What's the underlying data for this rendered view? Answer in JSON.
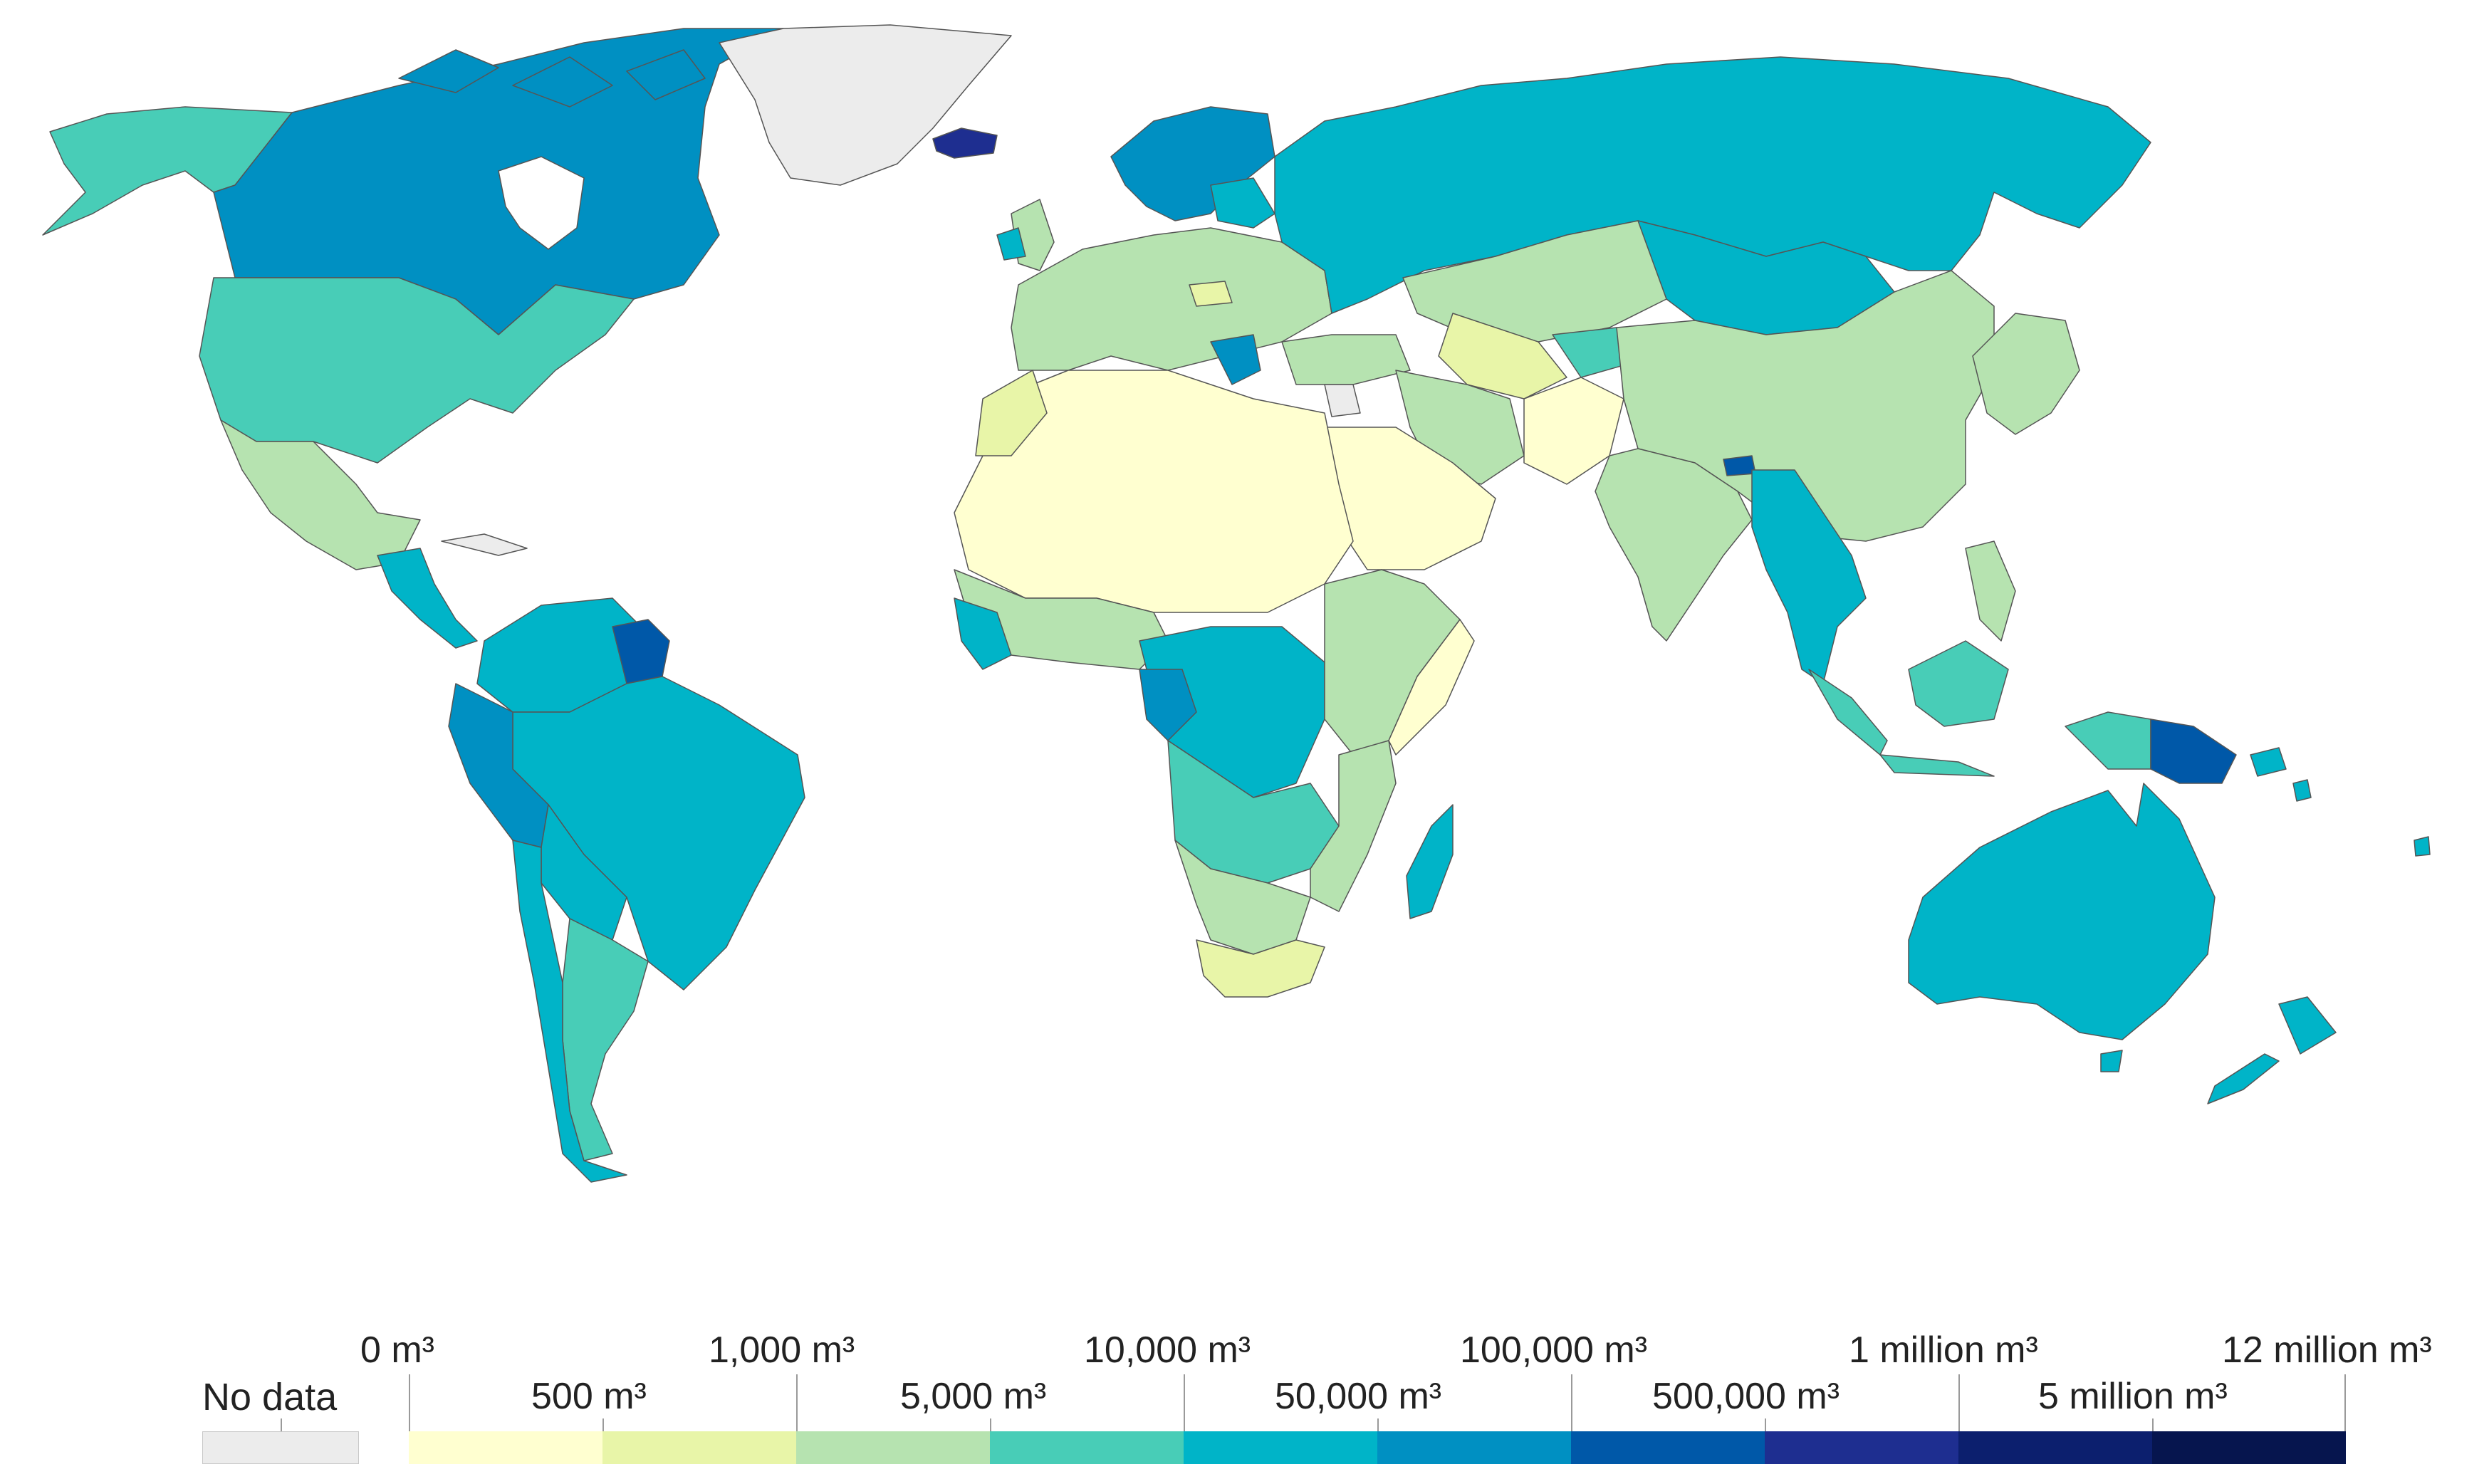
{
  "map": {
    "colors": {
      "no_data": "#ececec",
      "bin_1": "#ffffd0",
      "bin_2": "#e8f5a8",
      "bin_3": "#b6e3b0",
      "bin_4": "#48cdb7",
      "bin_5": "#00b4c8",
      "bin_6": "#0090c2",
      "bin_7": "#0058a8",
      "bin_8": "#1e2e90",
      "bin_9": "#0c1f6e",
      "bin_10": "#06154e"
    }
  },
  "legend": {
    "no_data_label": "No data",
    "top_labels": [
      "0 m³",
      "1,000 m³",
      "10,000 m³",
      "100,000 m³",
      "1 million m³",
      "12 million m³"
    ],
    "bottom_labels": [
      "500 m³",
      "5,000 m³",
      "50,000 m³",
      "500,000 m³",
      "5 million m³"
    ],
    "bins": [
      {
        "range": "0 m³ – 500 m³",
        "color": "#ffffd0"
      },
      {
        "range": "500 m³ – 1,000 m³",
        "color": "#e8f5a8"
      },
      {
        "range": "1,000 m³ – 5,000 m³",
        "color": "#b6e3b0"
      },
      {
        "range": "5,000 m³ – 10,000 m³",
        "color": "#48cdb7"
      },
      {
        "range": "10,000 m³ – 50,000 m³",
        "color": "#00b4c8"
      },
      {
        "range": "50,000 m³ – 100,000 m³",
        "color": "#0090c2"
      },
      {
        "range": "100,000 m³ – 500,000 m³",
        "color": "#0058a8"
      },
      {
        "range": "500,000 m³ – 1 million m³",
        "color": "#1e2e90"
      },
      {
        "range": "1 million m³ – 5 million m³",
        "color": "#0c1f6e"
      },
      {
        "range": "5 million m³ – 12 million m³",
        "color": "#06154e"
      }
    ]
  }
}
